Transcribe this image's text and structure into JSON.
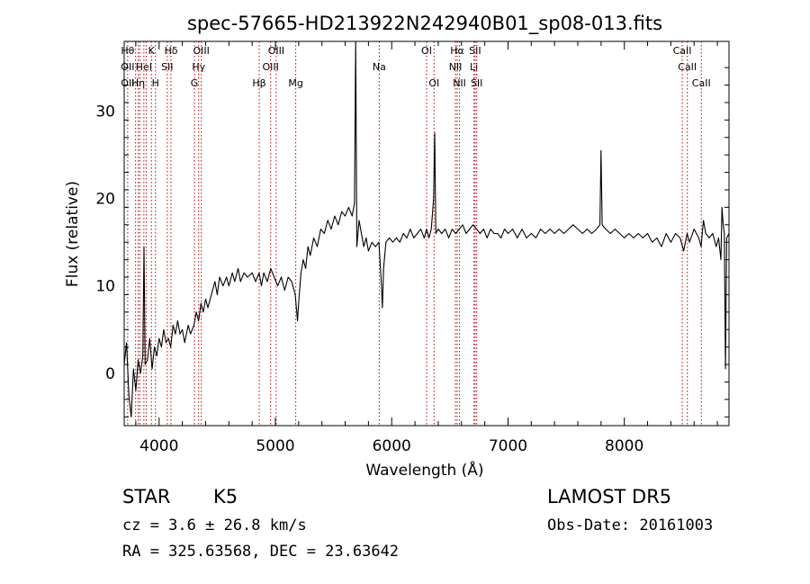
{
  "chart_data": {
    "type": "line",
    "title": "spec-57665-HD213922N242940B01_sp08-013.fits",
    "xlabel": "Wavelength (Å)",
    "ylabel": "Flux (relative)",
    "xlim": [
      3700,
      8900
    ],
    "ylim": [
      -6,
      38
    ],
    "x_ticks": [
      4000,
      5000,
      6000,
      7000,
      8000
    ],
    "y_ticks": [
      0,
      10,
      20,
      30
    ],
    "grid": false,
    "series": [
      {
        "color": "#000000",
        "points": [
          [
            3700,
            1.0
          ],
          [
            3720,
            3.5
          ],
          [
            3740,
            -2.5
          ],
          [
            3760,
            -5.0
          ],
          [
            3780,
            0.5
          ],
          [
            3800,
            -2.0
          ],
          [
            3820,
            1.5
          ],
          [
            3840,
            0.0
          ],
          [
            3860,
            2.0
          ],
          [
            3870,
            14.5
          ],
          [
            3880,
            1.0
          ],
          [
            3900,
            1.5
          ],
          [
            3920,
            4.0
          ],
          [
            3940,
            0.5
          ],
          [
            3960,
            3.0
          ],
          [
            3980,
            2.0
          ],
          [
            4000,
            4.0
          ],
          [
            4020,
            3.0
          ],
          [
            4040,
            5.0
          ],
          [
            4060,
            3.5
          ],
          [
            4080,
            4.0
          ],
          [
            4100,
            3.0
          ],
          [
            4120,
            5.5
          ],
          [
            4140,
            4.5
          ],
          [
            4160,
            6.0
          ],
          [
            4180,
            4.5
          ],
          [
            4200,
            5.0
          ],
          [
            4220,
            3.5
          ],
          [
            4250,
            5.5
          ],
          [
            4270,
            4.5
          ],
          [
            4300,
            5.5
          ],
          [
            4320,
            7.0
          ],
          [
            4340,
            6.0
          ],
          [
            4360,
            8.0
          ],
          [
            4380,
            7.0
          ],
          [
            4400,
            8.5
          ],
          [
            4420,
            7.5
          ],
          [
            4450,
            9.0
          ],
          [
            4480,
            10.5
          ],
          [
            4500,
            9.0
          ],
          [
            4520,
            11.0
          ],
          [
            4550,
            10.0
          ],
          [
            4580,
            11.0
          ],
          [
            4600,
            10.0
          ],
          [
            4630,
            11.5
          ],
          [
            4650,
            10.5
          ],
          [
            4680,
            12.0
          ],
          [
            4700,
            10.5
          ],
          [
            4730,
            11.5
          ],
          [
            4760,
            11.0
          ],
          [
            4800,
            11.5
          ],
          [
            4830,
            10.5
          ],
          [
            4860,
            11.5
          ],
          [
            4880,
            10.0
          ],
          [
            4900,
            11.5
          ],
          [
            4930,
            10.5
          ],
          [
            4960,
            12.0
          ],
          [
            4990,
            11.0
          ],
          [
            5020,
            10.0
          ],
          [
            5050,
            11.0
          ],
          [
            5080,
            9.5
          ],
          [
            5110,
            11.0
          ],
          [
            5140,
            10.5
          ],
          [
            5170,
            9.0
          ],
          [
            5190,
            6.0
          ],
          [
            5200,
            8.0
          ],
          [
            5220,
            11.5
          ],
          [
            5240,
            13.0
          ],
          [
            5260,
            12.0
          ],
          [
            5280,
            14.5
          ],
          [
            5300,
            13.5
          ],
          [
            5330,
            15.5
          ],
          [
            5360,
            14.5
          ],
          [
            5390,
            16.5
          ],
          [
            5420,
            16.0
          ],
          [
            5450,
            17.5
          ],
          [
            5480,
            16.5
          ],
          [
            5510,
            18.0
          ],
          [
            5540,
            17.0
          ],
          [
            5570,
            18.5
          ],
          [
            5600,
            18.0
          ],
          [
            5630,
            19.0
          ],
          [
            5660,
            18.0
          ],
          [
            5680,
            19.5
          ],
          [
            5690,
            38.0
          ],
          [
            5700,
            14.5
          ],
          [
            5720,
            17.5
          ],
          [
            5740,
            16.0
          ],
          [
            5760,
            14.5
          ],
          [
            5780,
            15.5
          ],
          [
            5800,
            14.0
          ],
          [
            5830,
            15.0
          ],
          [
            5860,
            14.5
          ],
          [
            5890,
            15.0
          ],
          [
            5910,
            10.5
          ],
          [
            5920,
            7.5
          ],
          [
            5930,
            12.0
          ],
          [
            5950,
            15.0
          ],
          [
            5980,
            15.5
          ],
          [
            6010,
            15.0
          ],
          [
            6040,
            15.5
          ],
          [
            6070,
            15.0
          ],
          [
            6100,
            16.0
          ],
          [
            6130,
            15.5
          ],
          [
            6160,
            16.5
          ],
          [
            6190,
            15.5
          ],
          [
            6220,
            16.0
          ],
          [
            6250,
            16.5
          ],
          [
            6280,
            15.5
          ],
          [
            6300,
            16.5
          ],
          [
            6320,
            15.5
          ],
          [
            6340,
            16.5
          ],
          [
            6360,
            20.0
          ],
          [
            6370,
            27.5
          ],
          [
            6380,
            16.0
          ],
          [
            6400,
            16.5
          ],
          [
            6430,
            16.0
          ],
          [
            6460,
            16.5
          ],
          [
            6490,
            15.5
          ],
          [
            6520,
            16.5
          ],
          [
            6550,
            16.0
          ],
          [
            6580,
            16.5
          ],
          [
            6610,
            17.0
          ],
          [
            6640,
            16.0
          ],
          [
            6670,
            16.5
          ],
          [
            6700,
            17.0
          ],
          [
            6730,
            16.5
          ],
          [
            6760,
            16.0
          ],
          [
            6790,
            16.5
          ],
          [
            6820,
            15.5
          ],
          [
            6850,
            16.5
          ],
          [
            6880,
            16.0
          ],
          [
            6910,
            16.0
          ],
          [
            6940,
            15.5
          ],
          [
            6970,
            16.5
          ],
          [
            7000,
            16.0
          ],
          [
            7040,
            16.5
          ],
          [
            7080,
            15.5
          ],
          [
            7120,
            16.5
          ],
          [
            7160,
            15.5
          ],
          [
            7200,
            16.0
          ],
          [
            7240,
            15.5
          ],
          [
            7280,
            16.5
          ],
          [
            7320,
            16.0
          ],
          [
            7360,
            16.5
          ],
          [
            7400,
            16.0
          ],
          [
            7440,
            16.5
          ],
          [
            7480,
            16.0
          ],
          [
            7520,
            16.5
          ],
          [
            7560,
            17.0
          ],
          [
            7600,
            16.5
          ],
          [
            7640,
            16.0
          ],
          [
            7680,
            16.5
          ],
          [
            7720,
            16.0
          ],
          [
            7760,
            16.5
          ],
          [
            7790,
            17.0
          ],
          [
            7800,
            25.5
          ],
          [
            7810,
            17.0
          ],
          [
            7840,
            16.5
          ],
          [
            7880,
            16.0
          ],
          [
            7920,
            16.5
          ],
          [
            7960,
            16.0
          ],
          [
            8000,
            15.5
          ],
          [
            8040,
            16.0
          ],
          [
            8080,
            15.5
          ],
          [
            8120,
            16.0
          ],
          [
            8160,
            15.5
          ],
          [
            8200,
            16.0
          ],
          [
            8240,
            15.0
          ],
          [
            8280,
            15.5
          ],
          [
            8320,
            14.5
          ],
          [
            8360,
            16.0
          ],
          [
            8400,
            15.0
          ],
          [
            8440,
            16.0
          ],
          [
            8480,
            15.5
          ],
          [
            8510,
            14.0
          ],
          [
            8540,
            16.0
          ],
          [
            8560,
            15.0
          ],
          [
            8600,
            16.5
          ],
          [
            8640,
            15.5
          ],
          [
            8660,
            14.5
          ],
          [
            8680,
            17.5
          ],
          [
            8700,
            16.0
          ],
          [
            8730,
            15.5
          ],
          [
            8760,
            16.0
          ],
          [
            8790,
            14.5
          ],
          [
            8810,
            15.5
          ],
          [
            8830,
            13.0
          ],
          [
            8840,
            19.0
          ],
          [
            8850,
            17.0
          ],
          [
            8860,
            16.0
          ],
          [
            8870,
            0.5
          ],
          [
            8880,
            15.5
          ],
          [
            8900,
            16.0
          ]
        ]
      }
    ],
    "lines": [
      {
        "x": 3730,
        "labels": [
          {
            "text": "Hθ",
            "row": 0
          },
          {
            "text": "OII",
            "row": 1
          },
          {
            "text": "OII",
            "row": 2
          }
        ]
      },
      {
        "x": 3798,
        "labels": []
      },
      {
        "x": 3820,
        "labels": [
          {
            "text": "Hη",
            "row": 2
          }
        ]
      },
      {
        "x": 3835,
        "labels": []
      },
      {
        "x": 3869,
        "labels": [
          {
            "text": "HeI",
            "row": 1
          }
        ]
      },
      {
        "x": 3889,
        "labels": []
      },
      {
        "x": 3934,
        "labels": [
          {
            "text": "K",
            "row": 0
          }
        ]
      },
      {
        "x": 3969,
        "labels": [
          {
            "text": "H",
            "row": 2
          }
        ]
      },
      {
        "x": 4070,
        "labels": [
          {
            "text": "SII",
            "row": 1
          }
        ]
      },
      {
        "x": 4102,
        "labels": [
          {
            "text": "Hδ",
            "row": 0
          }
        ]
      },
      {
        "x": 4304,
        "labels": [
          {
            "text": "G",
            "row": 2
          }
        ]
      },
      {
        "x": 4340,
        "labels": [
          {
            "text": "Hγ",
            "row": 1
          }
        ]
      },
      {
        "x": 4363,
        "labels": [
          {
            "text": "OIII",
            "row": 0
          }
        ]
      },
      {
        "x": 4861,
        "labels": [
          {
            "text": "Hβ",
            "row": 2
          }
        ]
      },
      {
        "x": 4959,
        "labels": [
          {
            "text": "OIII",
            "row": 1
          }
        ]
      },
      {
        "x": 5007,
        "labels": [
          {
            "text": "OIII",
            "row": 0
          }
        ]
      },
      {
        "x": 5175,
        "labels": [
          {
            "text": "Mg",
            "row": 2
          }
        ]
      },
      {
        "x": 5893,
        "labels": [
          {
            "text": "Na",
            "row": 1
          }
        ]
      },
      {
        "x": 6300,
        "labels": [
          {
            "text": "OI",
            "row": 0
          }
        ]
      },
      {
        "x": 6364,
        "labels": [
          {
            "text": "OI",
            "row": 2
          }
        ]
      },
      {
        "x": 6548,
        "labels": [
          {
            "text": "NII",
            "row": 1
          }
        ]
      },
      {
        "x": 6563,
        "labels": [
          {
            "text": "Hα",
            "row": 0
          }
        ]
      },
      {
        "x": 6583,
        "labels": [
          {
            "text": "NII",
            "row": 2
          }
        ]
      },
      {
        "x": 6707,
        "labels": [
          {
            "text": "Li",
            "row": 1
          }
        ]
      },
      {
        "x": 6717,
        "labels": [
          {
            "text": "SII",
            "row": 0
          }
        ]
      },
      {
        "x": 6731,
        "labels": [
          {
            "text": "SII",
            "row": 2
          }
        ]
      },
      {
        "x": 8498,
        "labels": [
          {
            "text": "CaII",
            "row": 0
          }
        ]
      },
      {
        "x": 8542,
        "labels": [
          {
            "text": "CaII",
            "row": 1
          }
        ]
      },
      {
        "x": 8662,
        "labels": [
          {
            "text": "CaII",
            "row": 2
          }
        ]
      }
    ],
    "line_color": "#c00000"
  },
  "info": {
    "class": "STAR",
    "subclass": "K5",
    "survey": "LAMOST  DR5",
    "cz": "cz = 3.6 ± 26.8 km/s",
    "obs_date": "Obs-Date: 20161003",
    "coords": "RA = 325.63568, DEC =  23.63642"
  }
}
